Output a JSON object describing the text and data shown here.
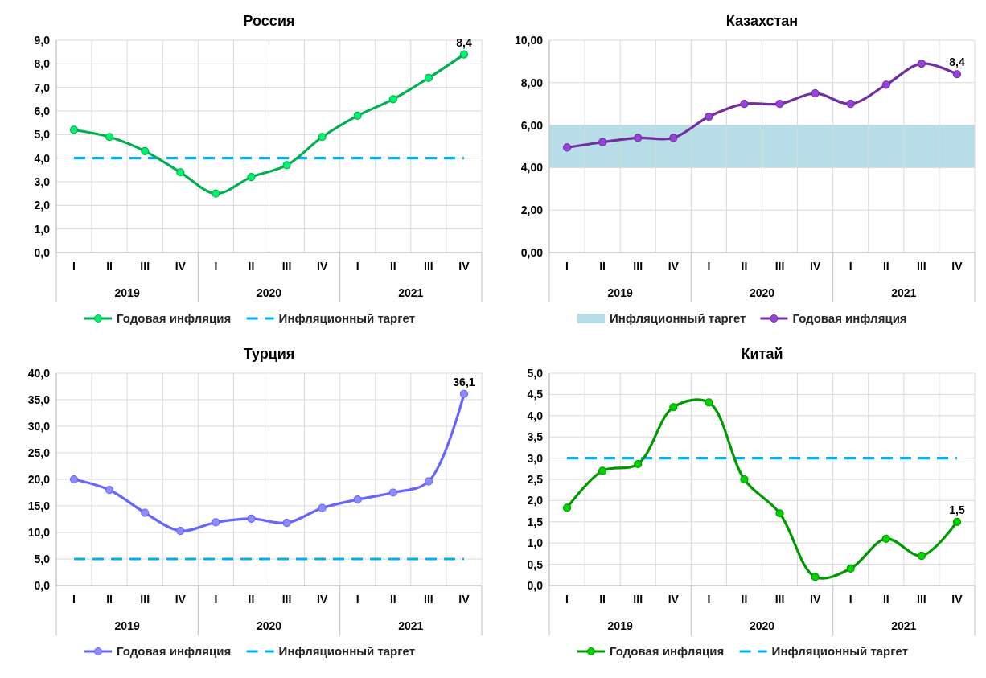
{
  "chart_data": [
    {
      "type": "line",
      "title": "Россия",
      "categories": [
        "I",
        "II",
        "III",
        "IV",
        "I",
        "II",
        "III",
        "IV",
        "I",
        "II",
        "III",
        "IV"
      ],
      "series": [
        {
          "name": "Годовая инфляция",
          "color": "#00b050",
          "values": [
            5.2,
            4.9,
            4.3,
            3.4,
            2.5,
            3.2,
            3.7,
            4.9,
            5.8,
            6.5,
            7.4,
            8.4
          ],
          "value_labels": [
            null,
            null,
            null,
            null,
            null,
            null,
            null,
            null,
            null,
            null,
            null,
            "8,4"
          ]
        }
      ],
      "ref_lines": [
        {
          "axis": "y",
          "value": 4,
          "label": "Инфляционный таргет",
          "color": "#00b0f0",
          "line_style": "dashed"
        }
      ],
      "annotations": [
        "2019",
        "2020",
        "2021"
      ],
      "ylim": [
        0,
        9
      ],
      "yticks": [
        {
          "value": 0,
          "label": "0,0"
        },
        {
          "value": 1,
          "label": "1,0"
        },
        {
          "value": 2,
          "label": "2,0"
        },
        {
          "value": 3,
          "label": "3,0"
        },
        {
          "value": 4,
          "label": "4,0"
        },
        {
          "value": 5,
          "label": "5,0"
        },
        {
          "value": 6,
          "label": "6,0"
        },
        {
          "value": 7,
          "label": "7,0"
        },
        {
          "value": 8,
          "label": "8,0"
        },
        {
          "value": 9,
          "label": "9,0"
        }
      ],
      "grid": true,
      "legend": "bottom",
      "marker": "circle",
      "line_style": "solid"
    },
    {
      "type": "line",
      "title": "Казахстан",
      "categories": [
        "I",
        "II",
        "III",
        "IV",
        "I",
        "II",
        "III",
        "IV",
        "I",
        "II",
        "III",
        "IV"
      ],
      "series": [
        {
          "name": "Годовая инфляция",
          "color": "#7030a0",
          "values": [
            4.95,
            5.2,
            5.4,
            5.4,
            6.4,
            7.0,
            7.0,
            7.5,
            7.0,
            7.9,
            8.9,
            8.4
          ],
          "value_labels": [
            null,
            null,
            null,
            null,
            null,
            null,
            null,
            null,
            null,
            null,
            null,
            "8,4"
          ]
        }
      ],
      "bands": [
        {
          "axis": "y",
          "from": 4,
          "to": 6,
          "label": "Инфляционный таргет",
          "color": "#b7dde8"
        }
      ],
      "annotations": [
        "2019",
        "2020",
        "2021"
      ],
      "ylim": [
        0,
        10
      ],
      "yticks": [
        {
          "value": 0,
          "label": "0,00"
        },
        {
          "value": 2,
          "label": "2,00"
        },
        {
          "value": 4,
          "label": "4,00"
        },
        {
          "value": 6,
          "label": "6,00"
        },
        {
          "value": 8,
          "label": "8,00"
        },
        {
          "value": 10,
          "label": "10,00"
        }
      ],
      "grid": true,
      "legend": "bottom",
      "marker": "circle",
      "line_style": "solid"
    },
    {
      "type": "line",
      "title": "Турция",
      "categories": [
        "I",
        "II",
        "III",
        "IV",
        "I",
        "II",
        "III",
        "IV",
        "I",
        "II",
        "III",
        "IV"
      ],
      "series": [
        {
          "name": "Годовая инфляция",
          "color": "#6666ff",
          "values": [
            20.0,
            18.0,
            13.7,
            10.3,
            11.9,
            12.6,
            11.8,
            14.6,
            16.2,
            17.5,
            19.6,
            36.1
          ],
          "value_labels": [
            null,
            null,
            null,
            null,
            null,
            null,
            null,
            null,
            null,
            null,
            null,
            "36,1"
          ]
        }
      ],
      "ref_lines": [
        {
          "axis": "y",
          "value": 5,
          "label": "Инфляционный таргет",
          "color": "#00b0f0",
          "line_style": "dashed"
        }
      ],
      "annotations": [
        "2019",
        "2020",
        "2021"
      ],
      "ylim": [
        0,
        40
      ],
      "yticks": [
        {
          "value": 0,
          "label": "0,0"
        },
        {
          "value": 5,
          "label": "5,0"
        },
        {
          "value": 10,
          "label": "10,0"
        },
        {
          "value": 15,
          "label": "15,0"
        },
        {
          "value": 20,
          "label": "20,0"
        },
        {
          "value": 25,
          "label": "25,0"
        },
        {
          "value": 30,
          "label": "30,0"
        },
        {
          "value": 35,
          "label": "35,0"
        },
        {
          "value": 40,
          "label": "40,0"
        }
      ],
      "grid": true,
      "legend": "bottom",
      "marker": "circle",
      "line_style": "solid"
    },
    {
      "type": "line",
      "title": "Китай",
      "categories": [
        "I",
        "II",
        "III",
        "IV",
        "I",
        "II",
        "III",
        "IV",
        "I",
        "II",
        "III",
        "IV"
      ],
      "series": [
        {
          "name": "Годовая инфляция",
          "color": "#009900",
          "values": [
            1.83,
            2.7,
            2.86,
            4.2,
            4.31,
            2.5,
            1.7,
            0.2,
            0.4,
            1.1,
            0.7,
            1.5
          ],
          "value_labels": [
            null,
            null,
            null,
            null,
            null,
            null,
            null,
            null,
            null,
            null,
            null,
            "1,5"
          ]
        }
      ],
      "ref_lines": [
        {
          "axis": "y",
          "value": 3,
          "label": "Инфляционный таргет",
          "color": "#00b0f0",
          "line_style": "dashed"
        }
      ],
      "annotations": [
        "2019",
        "2020",
        "2021"
      ],
      "ylim": [
        0,
        5
      ],
      "yticks": [
        {
          "value": 0,
          "label": "0,0"
        },
        {
          "value": 0.5,
          "label": "0,5"
        },
        {
          "value": 1,
          "label": "1,0"
        },
        {
          "value": 1.5,
          "label": "1,5"
        },
        {
          "value": 2,
          "label": "2,0"
        },
        {
          "value": 2.5,
          "label": "2,5"
        },
        {
          "value": 3,
          "label": "3,0"
        },
        {
          "value": 3.5,
          "label": "3,5"
        },
        {
          "value": 4,
          "label": "4,0"
        },
        {
          "value": 4.5,
          "label": "4,5"
        },
        {
          "value": 5,
          "label": "5,0"
        }
      ],
      "grid": true,
      "legend": "bottom",
      "marker": "circle",
      "line_style": "solid"
    }
  ]
}
